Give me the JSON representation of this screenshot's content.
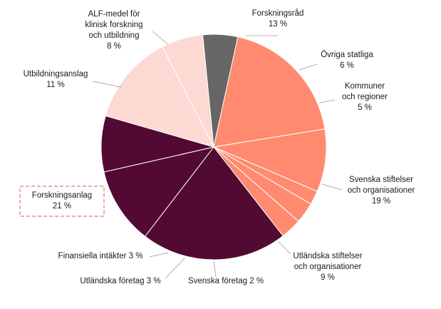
{
  "chart_data": {
    "type": "pie",
    "start_angle_deg": -74,
    "direction": "clockwise",
    "highlighted": "Forskningsanlag",
    "slices": [
      {
        "name": "Forskningsråd",
        "value": 13,
        "label_lines": [
          "Forskningsråd",
          "13 %"
        ],
        "color": "#fcd9d3"
      },
      {
        "name": "Övriga statliga",
        "value": 6,
        "label_lines": [
          "Övriga statliga",
          "6 %"
        ],
        "color": "#fcd9d3"
      },
      {
        "name": "Kommuner och regioner",
        "value": 5,
        "label_lines": [
          "Kommuner",
          "och regioner",
          "5 %"
        ],
        "color": "#666666"
      },
      {
        "name": "Svenska stiftelser och organisationer",
        "value": 19,
        "label_lines": [
          "Svenska stiftelser",
          "och organisationer",
          "19 %"
        ],
        "color": "#ff8a70"
      },
      {
        "name": "Utländska stiftelser och organisationer",
        "value": 9,
        "label_lines": [
          "Utländska stiftelser",
          "och organisationer",
          "9 %"
        ],
        "color": "#ff8a70"
      },
      {
        "name": "Svenska företag",
        "value": 2,
        "label_lines": [
          "Svenska företag 2 %"
        ],
        "color": "#ff8a70"
      },
      {
        "name": "Utländska företag",
        "value": 3,
        "label_lines": [
          "Utländska företag 3 %"
        ],
        "color": "#ff8a70"
      },
      {
        "name": "Finansiella intäkter",
        "value": 3,
        "label_lines": [
          "Finansiella intäkter 3 %"
        ],
        "color": "#ff8a70"
      },
      {
        "name": "Forskningsanlag",
        "value": 21,
        "label_lines": [
          "Forskningsanlag",
          "21 %"
        ],
        "color": "#520a32"
      },
      {
        "name": "Utbildningsanslag",
        "value": 11,
        "label_lines": [
          "Utbildningsanslag",
          "11 %"
        ],
        "color": "#520a32"
      },
      {
        "name": "ALF-medel för klinisk forskning och utbildning",
        "value": 8,
        "label_lines": [
          "ALF-medel för",
          "klinisk forskning",
          "och utbildning",
          "8 %"
        ],
        "color": "#520a32"
      }
    ]
  }
}
